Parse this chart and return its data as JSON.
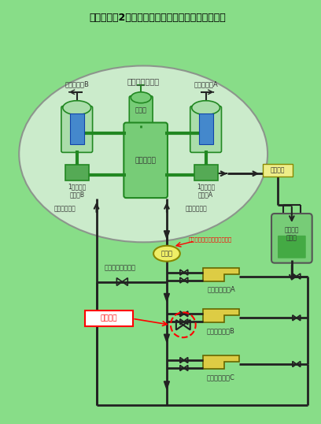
{
  "title": "伊方発電所2号機　充てんポンプまわり概略系統図",
  "bg_color": "#88dd88",
  "pipe_color": "#222222",
  "green_color": "#228822",
  "green_fill": "#77cc77",
  "sg_fill": "#aaddaa",
  "blue_fill": "#4488cc",
  "pump_fill": "#ddcc44",
  "purif_fill": "#eeee88",
  "tank_fill": "#77cc77",
  "containment_label": "原子炉格納容器",
  "reactor_label": "原子炉容器",
  "pressurizer_label": "加圧器",
  "sg_a_label": "蒸気発生器A",
  "sg_b_label": "蒸気発生器B",
  "pump1a_label": "1次冷却材\nポンプA",
  "pump1b_label": "1次冷却材\nポンプB",
  "purif_label": "浄化装置",
  "tank_label": "体積制御\nタンク",
  "charge_valve_label": "充てん流量調整弁",
  "pressure_gauge_label": "圧力計",
  "new_gauge_label": "今回の対策で設置する圧力計",
  "valve_label": "当該関弁",
  "seal_left_label": "封水注入系統",
  "seal_right_label": "封水注入系統",
  "pump_a_label": "充てんポンプA",
  "pump_b_label": "充てんポンプB",
  "pump_c_label": "充てんポンプC"
}
